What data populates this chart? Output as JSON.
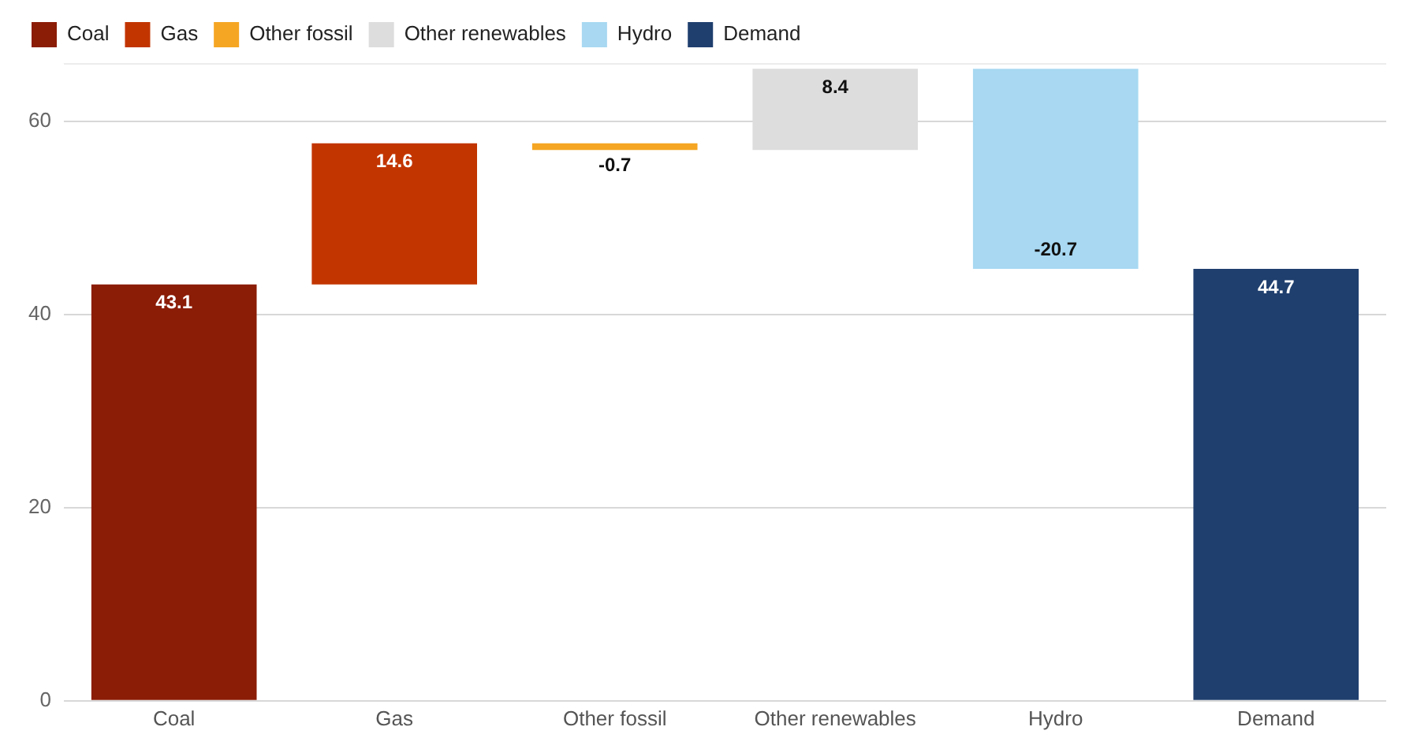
{
  "chart_data": {
    "type": "bar",
    "categories": [
      "Coal",
      "Gas",
      "Other fossil",
      "Other renewables",
      "Hydro",
      "Demand"
    ],
    "series": [
      {
        "name": "Coal",
        "color": "#8b1c06",
        "values": [
          43.1,
          null,
          null,
          null,
          null,
          null
        ],
        "base": [
          0,
          null,
          null,
          null,
          null,
          null
        ]
      },
      {
        "name": "Gas",
        "color": "#c23500",
        "values": [
          null,
          14.6,
          null,
          null,
          null,
          null
        ],
        "base": [
          null,
          43.1,
          null,
          null,
          null,
          null
        ]
      },
      {
        "name": "Other fossil",
        "color": "#f5a623",
        "values": [
          null,
          null,
          -0.7,
          null,
          null,
          null
        ],
        "base": [
          null,
          null,
          57.7,
          null,
          null,
          null
        ]
      },
      {
        "name": "Other renewables",
        "color": "#dddddd",
        "values": [
          null,
          null,
          null,
          8.4,
          null,
          null
        ],
        "base": [
          null,
          null,
          null,
          57.0,
          null,
          null
        ]
      },
      {
        "name": "Hydro",
        "color": "#a8d8f2",
        "values": [
          null,
          null,
          null,
          null,
          -20.7,
          null
        ],
        "base": [
          null,
          null,
          null,
          null,
          65.4,
          null
        ]
      },
      {
        "name": "Demand",
        "color": "#1f3f6e",
        "values": [
          null,
          null,
          null,
          null,
          null,
          44.7
        ],
        "base": [
          null,
          null,
          null,
          null,
          null,
          0
        ]
      }
    ],
    "ylim": [
      0,
      66
    ],
    "yticks": [
      0,
      20,
      40,
      60
    ],
    "grid": "y",
    "legend": "top left",
    "data_labels": true
  }
}
